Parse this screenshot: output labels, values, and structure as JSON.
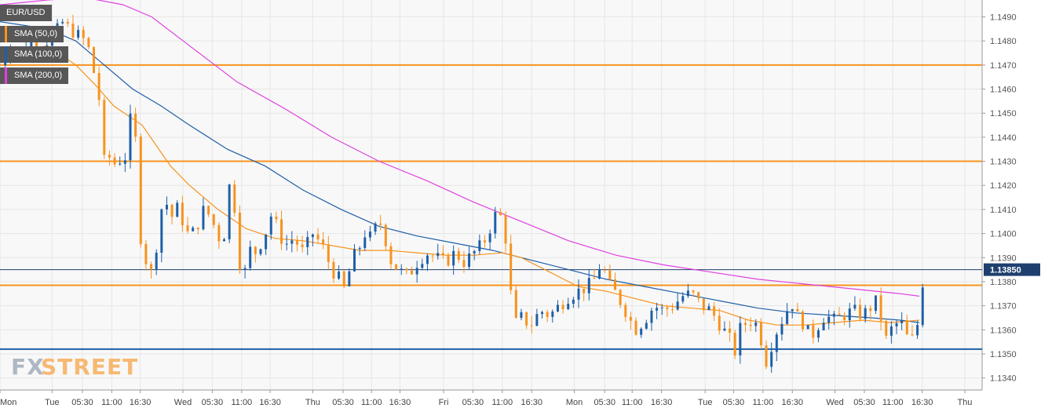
{
  "chart_data": {
    "type": "candlestick",
    "symbol": "EUR/USD",
    "legend": [
      {
        "label": "SMA (50,0)",
        "color": "#f7931e"
      },
      {
        "label": "SMA (100,0)",
        "color": "#1f5fa8"
      },
      {
        "label": "SMA (200,0)",
        "color": "#e040e0"
      }
    ],
    "brand": {
      "part1": "FX",
      "part2": "STREET"
    },
    "ylim": [
      1.1335,
      1.1497
    ],
    "xlim": [
      0,
      100
    ],
    "y_ticks": [
      "1.1340",
      "1.1350",
      "1.1360",
      "1.1370",
      "1.1380",
      "1.1390",
      "1.1400",
      "1.1410",
      "1.1420",
      "1.1430",
      "1.1440",
      "1.1450",
      "1.1460",
      "1.1470",
      "1.1480",
      "1.1490"
    ],
    "x_ticks": [
      {
        "label": "Mon",
        "x": 0.0
      },
      {
        "label": "Tue",
        "x": 5.5
      },
      {
        "label": "05:30",
        "x": 8.7
      },
      {
        "label": "11:00",
        "x": 11.8
      },
      {
        "label": "16:30",
        "x": 14.8
      },
      {
        "label": "Wed",
        "x": 19.3
      },
      {
        "label": "05:30",
        "x": 22.4
      },
      {
        "label": "11:00",
        "x": 25.5
      },
      {
        "label": "16:30",
        "x": 28.5
      },
      {
        "label": "Thu",
        "x": 33.0
      },
      {
        "label": "05:30",
        "x": 36.2
      },
      {
        "label": "11:00",
        "x": 39.2
      },
      {
        "label": "16:30",
        "x": 42.2
      },
      {
        "label": "Fri",
        "x": 46.8
      },
      {
        "label": "05:30",
        "x": 49.9
      },
      {
        "label": "11:00",
        "x": 53.0
      },
      {
        "label": "16:30",
        "x": 56.1
      },
      {
        "label": "Mon",
        "x": 60.6
      },
      {
        "label": "05:30",
        "x": 63.8
      },
      {
        "label": "11:00",
        "x": 66.7
      },
      {
        "label": "16:30",
        "x": 69.8
      },
      {
        "label": "Tue",
        "x": 74.4
      },
      {
        "label": "05:30",
        "x": 77.4
      },
      {
        "label": "11:00",
        "x": 80.5
      },
      {
        "label": "16:30",
        "x": 83.6
      },
      {
        "label": "Wed",
        "x": 88.1
      },
      {
        "label": "05:30",
        "x": 91.2
      },
      {
        "label": "11:00",
        "x": 94.2
      },
      {
        "label": "16:30",
        "x": 97.3
      },
      {
        "label": "Thu",
        "x": 101.8
      }
    ],
    "horizontal_levels": [
      {
        "value": 1.147,
        "color": "#f7931e"
      },
      {
        "value": 1.143,
        "color": "#f7931e"
      },
      {
        "value": 1.13785,
        "color": "#f7931e"
      },
      {
        "value": 1.1352,
        "color": "#1f5fa8"
      },
      {
        "value": 1.1385,
        "color": "#1f3f6e"
      }
    ],
    "last_price": "1.13850",
    "price_path": [
      [
        0,
        1.147
      ],
      [
        1,
        1.1478
      ],
      [
        2,
        1.1474
      ],
      [
        3,
        1.1481
      ],
      [
        4,
        1.1477
      ],
      [
        5,
        1.148
      ],
      [
        6,
        1.1484
      ],
      [
        6.5,
        1.1488
      ],
      [
        7,
        1.1486
      ],
      [
        8,
        1.1483
      ],
      [
        9,
        1.148
      ],
      [
        9.5,
        1.1475
      ],
      [
        10,
        1.1465
      ],
      [
        10.5,
        1.1455
      ],
      [
        11,
        1.143
      ],
      [
        11.5,
        1.1432
      ],
      [
        12,
        1.1428
      ],
      [
        12.5,
        1.1433
      ],
      [
        13,
        1.1425
      ],
      [
        13.5,
        1.1442
      ],
      [
        14,
        1.1452
      ],
      [
        14.5,
        1.143
      ],
      [
        15,
        1.1385
      ],
      [
        15.5,
        1.139
      ],
      [
        16,
        1.1383
      ],
      [
        16.5,
        1.1395
      ],
      [
        17,
        1.141
      ],
      [
        17.5,
        1.1414
      ],
      [
        18,
        1.1405
      ],
      [
        18.5,
        1.1412
      ],
      [
        19,
        1.1408
      ],
      [
        20,
        1.1398
      ],
      [
        21,
        1.1405
      ],
      [
        21.5,
        1.141
      ],
      [
        22,
        1.1408
      ],
      [
        23,
        1.14
      ],
      [
        23.5,
        1.1392
      ],
      [
        24,
        1.1418
      ],
      [
        24.5,
        1.1422
      ],
      [
        25,
        1.14
      ],
      [
        25.5,
        1.138
      ],
      [
        26,
        1.1386
      ],
      [
        26.5,
        1.1395
      ],
      [
        27,
        1.1392
      ],
      [
        28,
        1.14
      ],
      [
        28.5,
        1.1408
      ],
      [
        29,
        1.1405
      ],
      [
        30,
        1.1395
      ],
      [
        31,
        1.1398
      ],
      [
        32,
        1.1392
      ],
      [
        33,
        1.14
      ],
      [
        34,
        1.1395
      ],
      [
        35,
        1.1385
      ],
      [
        36,
        1.138
      ],
      [
        36.5,
        1.1375
      ],
      [
        37,
        1.1388
      ],
      [
        38,
        1.1395
      ],
      [
        38.5,
        1.14
      ],
      [
        39,
        1.1398
      ],
      [
        40,
        1.1405
      ],
      [
        40.5,
        1.1402
      ],
      [
        41,
        1.139
      ],
      [
        42,
        1.1385
      ],
      [
        43,
        1.1382
      ],
      [
        44,
        1.1388
      ],
      [
        45,
        1.1392
      ],
      [
        46,
        1.139
      ],
      [
        47,
        1.1388
      ],
      [
        48,
        1.1392
      ],
      [
        49,
        1.1388
      ],
      [
        50,
        1.1392
      ],
      [
        51,
        1.1396
      ],
      [
        52,
        1.1405
      ],
      [
        52.5,
        1.141
      ],
      [
        53,
        1.1405
      ],
      [
        53.5,
        1.1395
      ],
      [
        54,
        1.137
      ],
      [
        54.5,
        1.1362
      ],
      [
        55,
        1.1365
      ],
      [
        56,
        1.1362
      ],
      [
        57,
        1.1368
      ],
      [
        58,
        1.1366
      ],
      [
        59,
        1.137
      ],
      [
        60,
        1.1374
      ],
      [
        61,
        1.1376
      ],
      [
        62,
        1.1378
      ],
      [
        63,
        1.1382
      ],
      [
        63.5,
        1.139
      ],
      [
        64,
        1.138
      ],
      [
        65,
        1.1375
      ],
      [
        66,
        1.1368
      ],
      [
        67,
        1.136
      ],
      [
        68,
        1.1364
      ],
      [
        69,
        1.137
      ],
      [
        70,
        1.1368
      ],
      [
        71,
        1.137
      ],
      [
        72,
        1.1374
      ],
      [
        73,
        1.1375
      ],
      [
        74,
        1.137
      ],
      [
        75,
        1.1368
      ],
      [
        76,
        1.1362
      ],
      [
        77,
        1.1356
      ],
      [
        77.5,
        1.135
      ],
      [
        78,
        1.136
      ],
      [
        79,
        1.1364
      ],
      [
        80,
        1.1362
      ],
      [
        80.5,
        1.1352
      ],
      [
        81,
        1.1345
      ],
      [
        81.5,
        1.1356
      ],
      [
        82,
        1.136
      ],
      [
        83,
        1.1368
      ],
      [
        83.5,
        1.1372
      ],
      [
        84,
        1.1366
      ],
      [
        85,
        1.1362
      ],
      [
        85.5,
        1.1356
      ],
      [
        86,
        1.136
      ],
      [
        87,
        1.1366
      ],
      [
        88,
        1.1364
      ],
      [
        89,
        1.1366
      ],
      [
        90,
        1.1368
      ],
      [
        91,
        1.1366
      ],
      [
        92,
        1.137
      ],
      [
        92.5,
        1.1372
      ],
      [
        93,
        1.1364
      ],
      [
        93.5,
        1.1356
      ],
      [
        94,
        1.136
      ],
      [
        95,
        1.1364
      ],
      [
        96,
        1.1354
      ],
      [
        96.5,
        1.1358
      ],
      [
        97,
        1.1365
      ],
      [
        97.5,
        1.1386
      ]
    ],
    "sma50": [
      [
        0,
        1.1473
      ],
      [
        5,
        1.1478
      ],
      [
        8,
        1.147
      ],
      [
        10,
        1.1462
      ],
      [
        12,
        1.1453
      ],
      [
        15,
        1.1445
      ],
      [
        18,
        1.1428
      ],
      [
        20,
        1.142
      ],
      [
        23,
        1.141
      ],
      [
        26,
        1.1402
      ],
      [
        29,
        1.1398
      ],
      [
        32,
        1.1397
      ],
      [
        35,
        1.1395
      ],
      [
        38,
        1.1393
      ],
      [
        41,
        1.1393
      ],
      [
        44,
        1.1392
      ],
      [
        47,
        1.1391
      ],
      [
        50,
        1.1391
      ],
      [
        53,
        1.1392
      ],
      [
        55,
        1.139
      ],
      [
        58,
        1.1384
      ],
      [
        61,
        1.1378
      ],
      [
        64,
        1.1376
      ],
      [
        67,
        1.1373
      ],
      [
        70,
        1.137
      ],
      [
        73,
        1.1369
      ],
      [
        76,
        1.1368
      ],
      [
        79,
        1.1364
      ],
      [
        82,
        1.1362
      ],
      [
        85,
        1.1362
      ],
      [
        88,
        1.1363
      ],
      [
        91,
        1.1364
      ],
      [
        94,
        1.1363
      ],
      [
        97,
        1.1364
      ]
    ],
    "sma100": [
      [
        0,
        1.1488
      ],
      [
        5,
        1.1485
      ],
      [
        8,
        1.148
      ],
      [
        11,
        1.147
      ],
      [
        14,
        1.146
      ],
      [
        17,
        1.1453
      ],
      [
        20,
        1.1445
      ],
      [
        24,
        1.1435
      ],
      [
        28,
        1.1428
      ],
      [
        32,
        1.1418
      ],
      [
        36,
        1.141
      ],
      [
        40,
        1.1403
      ],
      [
        44,
        1.1399
      ],
      [
        48,
        1.1396
      ],
      [
        52,
        1.1393
      ],
      [
        56,
        1.1389
      ],
      [
        60,
        1.1385
      ],
      [
        64,
        1.1381
      ],
      [
        68,
        1.1378
      ],
      [
        72,
        1.1375
      ],
      [
        76,
        1.1372
      ],
      [
        80,
        1.1369
      ],
      [
        84,
        1.1367
      ],
      [
        88,
        1.1366
      ],
      [
        92,
        1.1365
      ],
      [
        95,
        1.1364
      ],
      [
        97,
        1.1363
      ]
    ],
    "sma200": [
      [
        0,
        1.1495
      ],
      [
        5,
        1.1497
      ],
      [
        9,
        1.1498
      ],
      [
        13,
        1.1495
      ],
      [
        16,
        1.149
      ],
      [
        20,
        1.1478
      ],
      [
        25,
        1.1463
      ],
      [
        30,
        1.1452
      ],
      [
        35,
        1.144
      ],
      [
        40,
        1.143
      ],
      [
        45,
        1.1422
      ],
      [
        50,
        1.1413
      ],
      [
        55,
        1.1405
      ],
      [
        60,
        1.1397
      ],
      [
        65,
        1.1391
      ],
      [
        70,
        1.1387
      ],
      [
        75,
        1.1384
      ],
      [
        80,
        1.1381
      ],
      [
        85,
        1.1379
      ],
      [
        90,
        1.1377
      ],
      [
        95,
        1.1375
      ],
      [
        97,
        1.1374
      ]
    ]
  }
}
